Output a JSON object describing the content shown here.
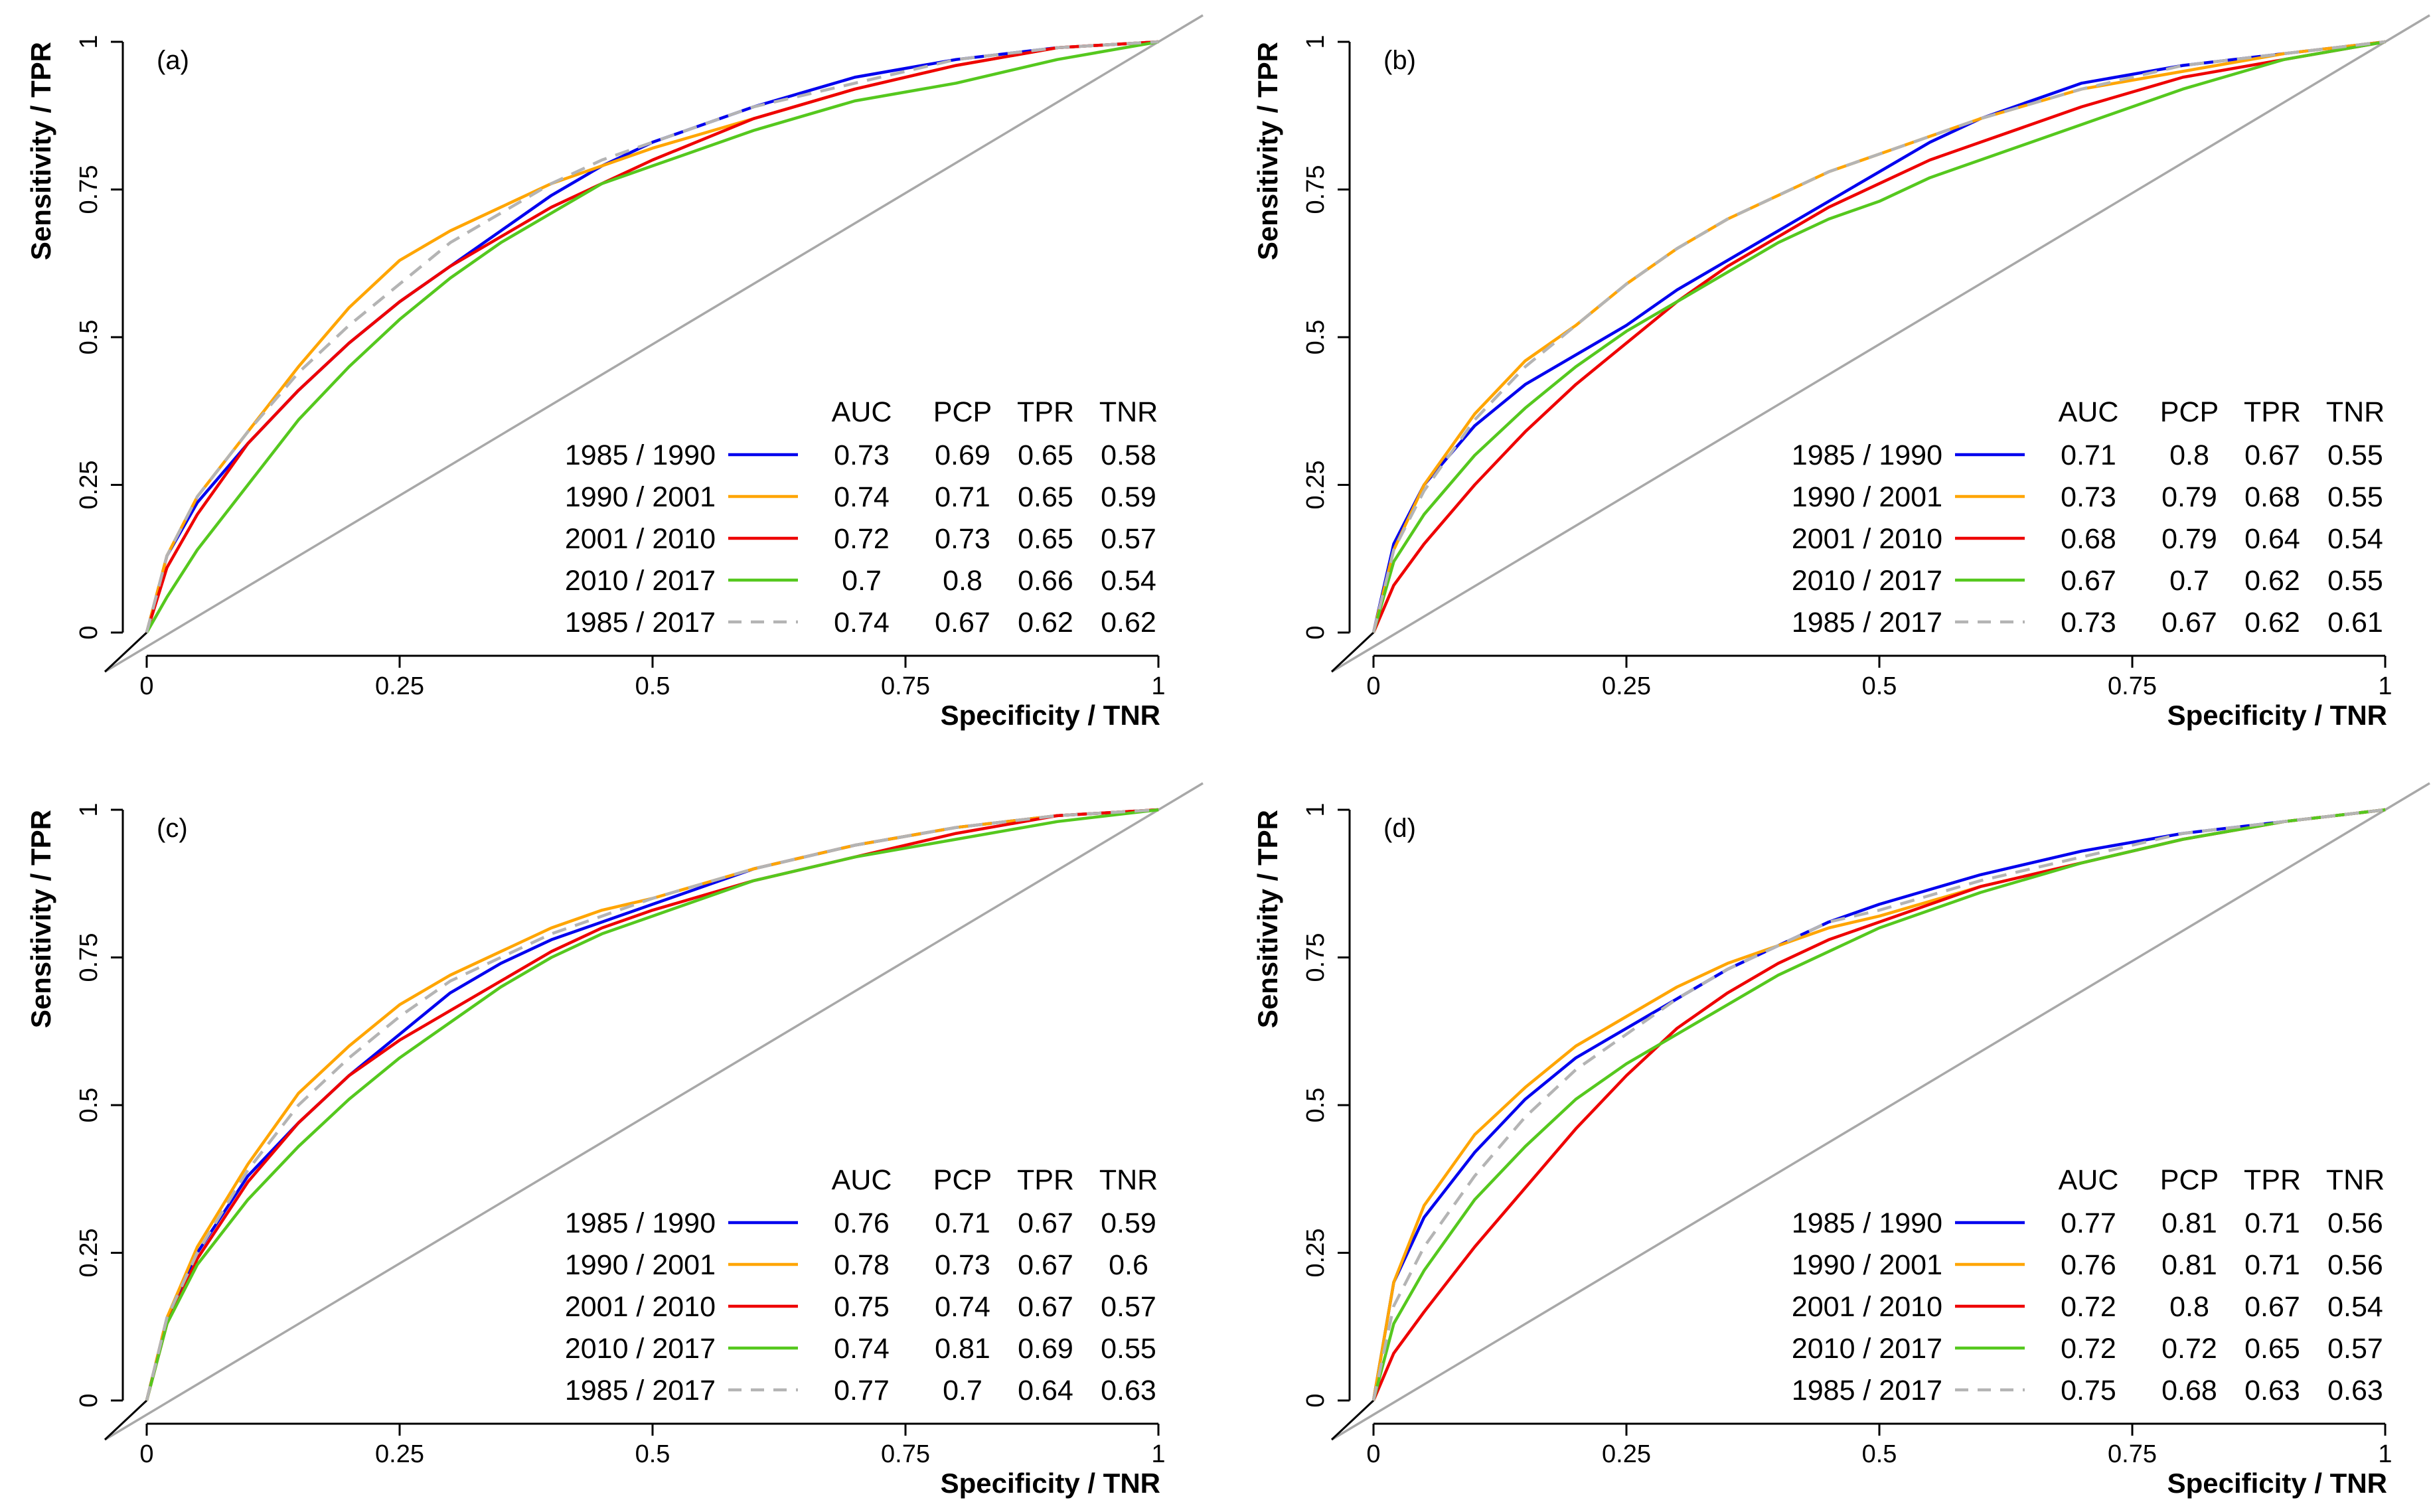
{
  "colors": {
    "1985 / 1990": "#0000ee",
    "1990 / 2001": "#ffa500",
    "2001 / 2010": "#ee0000",
    "2010 / 2017": "#55c81e",
    "1985 / 2017": "#b4b4b4",
    "diagonal": "#a8a8a8",
    "axis": "#000000"
  },
  "chart_data": [
    {
      "type": "line",
      "panel_label": "(a)",
      "xlabel": "Specificity / TNR",
      "ylabel": "Sensitivity / TPR",
      "xlim": [
        0,
        1
      ],
      "ylim": [
        0,
        1
      ],
      "xticks": [
        "0",
        "0.25",
        "0.5",
        "0.75",
        "1"
      ],
      "yticks": [
        "0",
        "0.25",
        "0.5",
        "0.75",
        "1"
      ],
      "legend_placement": "bottom-right",
      "legend_header": [
        "AUC",
        "PCP",
        "TPR",
        "TNR"
      ],
      "series": [
        {
          "name": "1985 / 1990",
          "style": "solid",
          "AUC": "0.73",
          "PCP": "0.69",
          "TPR": "0.65",
          "TNR": "0.58",
          "x": [
            0,
            0.02,
            0.05,
            0.1,
            0.15,
            0.2,
            0.25,
            0.3,
            0.35,
            0.4,
            0.45,
            0.5,
            0.6,
            0.7,
            0.8,
            0.9,
            1
          ],
          "y": [
            0,
            0.13,
            0.22,
            0.32,
            0.41,
            0.49,
            0.56,
            0.62,
            0.68,
            0.74,
            0.79,
            0.83,
            0.89,
            0.94,
            0.97,
            0.99,
            1
          ]
        },
        {
          "name": "1990 / 2001",
          "style": "solid",
          "AUC": "0.74",
          "PCP": "0.71",
          "TPR": "0.65",
          "TNR": "0.59",
          "x": [
            0,
            0.02,
            0.05,
            0.1,
            0.15,
            0.2,
            0.25,
            0.3,
            0.35,
            0.4,
            0.45,
            0.5,
            0.6,
            0.7,
            0.8,
            0.9,
            1
          ],
          "y": [
            0,
            0.13,
            0.23,
            0.34,
            0.45,
            0.55,
            0.63,
            0.68,
            0.72,
            0.76,
            0.79,
            0.82,
            0.87,
            0.92,
            0.96,
            0.99,
            1
          ]
        },
        {
          "name": "2001 / 2010",
          "style": "solid",
          "AUC": "0.72",
          "PCP": "0.73",
          "TPR": "0.65",
          "TNR": "0.57",
          "x": [
            0,
            0.02,
            0.05,
            0.1,
            0.15,
            0.2,
            0.25,
            0.3,
            0.35,
            0.4,
            0.45,
            0.5,
            0.6,
            0.7,
            0.8,
            0.9,
            1
          ],
          "y": [
            0,
            0.11,
            0.2,
            0.32,
            0.41,
            0.49,
            0.56,
            0.62,
            0.67,
            0.72,
            0.76,
            0.8,
            0.87,
            0.92,
            0.96,
            0.99,
            1
          ]
        },
        {
          "name": "2010 / 2017",
          "style": "solid",
          "AUC": "0.7",
          "PCP": "0.8",
          "TPR": "0.66",
          "TNR": "0.54",
          "x": [
            0,
            0.02,
            0.05,
            0.1,
            0.15,
            0.2,
            0.25,
            0.3,
            0.35,
            0.4,
            0.45,
            0.5,
            0.6,
            0.7,
            0.8,
            0.9,
            1
          ],
          "y": [
            0,
            0.06,
            0.14,
            0.25,
            0.36,
            0.45,
            0.53,
            0.6,
            0.66,
            0.71,
            0.76,
            0.79,
            0.85,
            0.9,
            0.93,
            0.97,
            1
          ]
        },
        {
          "name": "1985 / 2017",
          "style": "dashed",
          "AUC": "0.74",
          "PCP": "0.67",
          "TPR": "0.62",
          "TNR": "0.62",
          "x": [
            0,
            0.02,
            0.05,
            0.1,
            0.15,
            0.2,
            0.25,
            0.3,
            0.35,
            0.4,
            0.45,
            0.5,
            0.6,
            0.7,
            0.8,
            0.9,
            1
          ],
          "y": [
            0,
            0.13,
            0.23,
            0.34,
            0.44,
            0.52,
            0.59,
            0.66,
            0.71,
            0.76,
            0.8,
            0.83,
            0.89,
            0.93,
            0.97,
            0.99,
            1
          ]
        }
      ]
    },
    {
      "type": "line",
      "panel_label": "(b)",
      "xlabel": "Specificity / TNR",
      "ylabel": "Sensitivity / TPR",
      "xlim": [
        0,
        1
      ],
      "ylim": [
        0,
        1
      ],
      "xticks": [
        "0",
        "0.25",
        "0.5",
        "0.75",
        "1"
      ],
      "yticks": [
        "0",
        "0.25",
        "0.5",
        "0.75",
        "1"
      ],
      "legend_placement": "bottom-right",
      "legend_header": [
        "AUC",
        "PCP",
        "TPR",
        "TNR"
      ],
      "series": [
        {
          "name": "1985 / 1990",
          "style": "solid",
          "AUC": "0.71",
          "PCP": "0.8",
          "TPR": "0.67",
          "TNR": "0.55",
          "x": [
            0,
            0.02,
            0.05,
            0.1,
            0.15,
            0.2,
            0.25,
            0.3,
            0.35,
            0.4,
            0.45,
            0.5,
            0.55,
            0.6,
            0.7,
            0.8,
            0.9,
            1
          ],
          "y": [
            0,
            0.15,
            0.25,
            0.35,
            0.42,
            0.47,
            0.52,
            0.58,
            0.63,
            0.68,
            0.73,
            0.78,
            0.83,
            0.87,
            0.93,
            0.96,
            0.98,
            1
          ]
        },
        {
          "name": "1990 / 2001",
          "style": "solid",
          "AUC": "0.73",
          "PCP": "0.79",
          "TPR": "0.68",
          "TNR": "0.55",
          "x": [
            0,
            0.02,
            0.05,
            0.1,
            0.15,
            0.2,
            0.25,
            0.3,
            0.35,
            0.4,
            0.45,
            0.5,
            0.55,
            0.6,
            0.7,
            0.8,
            0.9,
            1
          ],
          "y": [
            0,
            0.14,
            0.25,
            0.37,
            0.46,
            0.52,
            0.59,
            0.65,
            0.7,
            0.74,
            0.78,
            0.81,
            0.84,
            0.87,
            0.92,
            0.95,
            0.98,
            1
          ]
        },
        {
          "name": "2001 / 2010",
          "style": "solid",
          "AUC": "0.68",
          "PCP": "0.79",
          "TPR": "0.64",
          "TNR": "0.54",
          "x": [
            0,
            0.02,
            0.05,
            0.1,
            0.15,
            0.2,
            0.25,
            0.3,
            0.35,
            0.4,
            0.45,
            0.5,
            0.55,
            0.6,
            0.7,
            0.8,
            0.9,
            1
          ],
          "y": [
            0,
            0.08,
            0.15,
            0.25,
            0.34,
            0.42,
            0.49,
            0.56,
            0.62,
            0.67,
            0.72,
            0.76,
            0.8,
            0.83,
            0.89,
            0.94,
            0.97,
            1
          ]
        },
        {
          "name": "2010 / 2017",
          "style": "solid",
          "AUC": "0.67",
          "PCP": "0.7",
          "TPR": "0.62",
          "TNR": "0.55",
          "x": [
            0,
            0.02,
            0.05,
            0.1,
            0.15,
            0.2,
            0.25,
            0.3,
            0.35,
            0.4,
            0.45,
            0.5,
            0.55,
            0.6,
            0.7,
            0.8,
            0.9,
            1
          ],
          "y": [
            0,
            0.12,
            0.2,
            0.3,
            0.38,
            0.45,
            0.51,
            0.56,
            0.61,
            0.66,
            0.7,
            0.73,
            0.77,
            0.8,
            0.86,
            0.92,
            0.97,
            1
          ]
        },
        {
          "name": "1985 / 2017",
          "style": "dashed",
          "AUC": "0.73",
          "PCP": "0.67",
          "TPR": "0.62",
          "TNR": "0.61",
          "x": [
            0,
            0.02,
            0.05,
            0.1,
            0.15,
            0.2,
            0.25,
            0.3,
            0.35,
            0.4,
            0.45,
            0.5,
            0.55,
            0.6,
            0.7,
            0.8,
            0.9,
            1
          ],
          "y": [
            0,
            0.14,
            0.24,
            0.36,
            0.45,
            0.52,
            0.59,
            0.65,
            0.7,
            0.74,
            0.78,
            0.81,
            0.84,
            0.87,
            0.92,
            0.96,
            0.98,
            1
          ]
        }
      ]
    },
    {
      "type": "line",
      "panel_label": "(c)",
      "xlabel": "Specificity / TNR",
      "ylabel": "Sensitivity / TPR",
      "xlim": [
        0,
        1
      ],
      "ylim": [
        0,
        1
      ],
      "xticks": [
        "0",
        "0.25",
        "0.5",
        "0.75",
        "1"
      ],
      "yticks": [
        "0",
        "0.25",
        "0.5",
        "0.75",
        "1"
      ],
      "legend_placement": "bottom-right",
      "legend_header": [
        "AUC",
        "PCP",
        "TPR",
        "TNR"
      ],
      "series": [
        {
          "name": "1985 / 1990",
          "style": "solid",
          "AUC": "0.76",
          "PCP": "0.71",
          "TPR": "0.67",
          "TNR": "0.59",
          "x": [
            0,
            0.02,
            0.05,
            0.1,
            0.15,
            0.2,
            0.25,
            0.3,
            0.35,
            0.4,
            0.45,
            0.5,
            0.6,
            0.7,
            0.8,
            0.9,
            1
          ],
          "y": [
            0,
            0.14,
            0.25,
            0.38,
            0.47,
            0.55,
            0.62,
            0.69,
            0.74,
            0.78,
            0.81,
            0.84,
            0.9,
            0.94,
            0.97,
            0.99,
            1
          ]
        },
        {
          "name": "1990 / 2001",
          "style": "solid",
          "AUC": "0.78",
          "PCP": "0.73",
          "TPR": "0.67",
          "TNR": "0.6",
          "x": [
            0,
            0.02,
            0.05,
            0.1,
            0.15,
            0.2,
            0.25,
            0.3,
            0.35,
            0.4,
            0.45,
            0.5,
            0.6,
            0.7,
            0.8,
            0.9,
            1
          ],
          "y": [
            0,
            0.14,
            0.26,
            0.4,
            0.52,
            0.6,
            0.67,
            0.72,
            0.76,
            0.8,
            0.83,
            0.85,
            0.9,
            0.94,
            0.97,
            0.99,
            1
          ]
        },
        {
          "name": "2001 / 2010",
          "style": "solid",
          "AUC": "0.75",
          "PCP": "0.74",
          "TPR": "0.67",
          "TNR": "0.57",
          "x": [
            0,
            0.02,
            0.05,
            0.1,
            0.15,
            0.2,
            0.25,
            0.3,
            0.35,
            0.4,
            0.45,
            0.5,
            0.6,
            0.7,
            0.8,
            0.9,
            1
          ],
          "y": [
            0,
            0.13,
            0.24,
            0.37,
            0.47,
            0.55,
            0.61,
            0.66,
            0.71,
            0.76,
            0.8,
            0.83,
            0.88,
            0.92,
            0.96,
            0.99,
            1
          ]
        },
        {
          "name": "2010 / 2017",
          "style": "solid",
          "AUC": "0.74",
          "PCP": "0.81",
          "TPR": "0.69",
          "TNR": "0.55",
          "x": [
            0,
            0.02,
            0.05,
            0.1,
            0.15,
            0.2,
            0.25,
            0.3,
            0.35,
            0.4,
            0.45,
            0.5,
            0.6,
            0.7,
            0.8,
            0.9,
            1
          ],
          "y": [
            0,
            0.13,
            0.23,
            0.34,
            0.43,
            0.51,
            0.58,
            0.64,
            0.7,
            0.75,
            0.79,
            0.82,
            0.88,
            0.92,
            0.95,
            0.98,
            1
          ]
        },
        {
          "name": "1985 / 2017",
          "style": "dashed",
          "AUC": "0.77",
          "PCP": "0.7",
          "TPR": "0.64",
          "TNR": "0.63",
          "x": [
            0,
            0.02,
            0.05,
            0.1,
            0.15,
            0.2,
            0.25,
            0.3,
            0.35,
            0.4,
            0.45,
            0.5,
            0.6,
            0.7,
            0.8,
            0.9,
            1
          ],
          "y": [
            0,
            0.14,
            0.25,
            0.39,
            0.5,
            0.58,
            0.65,
            0.71,
            0.75,
            0.79,
            0.82,
            0.85,
            0.9,
            0.94,
            0.97,
            0.99,
            1
          ]
        }
      ]
    },
    {
      "type": "line",
      "panel_label": "(d)",
      "xlabel": "Specificity / TNR",
      "ylabel": "Sensitivity / TPR",
      "xlim": [
        0,
        1
      ],
      "ylim": [
        0,
        1
      ],
      "xticks": [
        "0",
        "0.25",
        "0.5",
        "0.75",
        "1"
      ],
      "yticks": [
        "0",
        "0.25",
        "0.5",
        "0.75",
        "1"
      ],
      "legend_placement": "bottom-right",
      "legend_header": [
        "AUC",
        "PCP",
        "TPR",
        "TNR"
      ],
      "series": [
        {
          "name": "1985 / 1990",
          "style": "solid",
          "AUC": "0.77",
          "PCP": "0.81",
          "TPR": "0.71",
          "TNR": "0.56",
          "x": [
            0,
            0.02,
            0.05,
            0.1,
            0.15,
            0.2,
            0.25,
            0.3,
            0.35,
            0.4,
            0.45,
            0.5,
            0.6,
            0.7,
            0.8,
            0.9,
            1
          ],
          "y": [
            0,
            0.2,
            0.31,
            0.42,
            0.51,
            0.58,
            0.63,
            0.68,
            0.73,
            0.77,
            0.81,
            0.84,
            0.89,
            0.93,
            0.96,
            0.98,
            1
          ]
        },
        {
          "name": "1990 / 2001",
          "style": "solid",
          "AUC": "0.76",
          "PCP": "0.81",
          "TPR": "0.71",
          "TNR": "0.56",
          "x": [
            0,
            0.02,
            0.05,
            0.1,
            0.15,
            0.2,
            0.25,
            0.3,
            0.35,
            0.4,
            0.45,
            0.5,
            0.6,
            0.7,
            0.8,
            0.9,
            1
          ],
          "y": [
            0,
            0.2,
            0.33,
            0.45,
            0.53,
            0.6,
            0.65,
            0.7,
            0.74,
            0.77,
            0.8,
            0.82,
            0.87,
            0.91,
            0.95,
            0.98,
            1
          ]
        },
        {
          "name": "2001 / 2010",
          "style": "solid",
          "AUC": "0.72",
          "PCP": "0.8",
          "TPR": "0.67",
          "TNR": "0.54",
          "x": [
            0,
            0.02,
            0.05,
            0.1,
            0.15,
            0.2,
            0.25,
            0.3,
            0.35,
            0.4,
            0.45,
            0.5,
            0.6,
            0.7,
            0.8,
            0.9,
            1
          ],
          "y": [
            0,
            0.08,
            0.15,
            0.26,
            0.36,
            0.46,
            0.55,
            0.63,
            0.69,
            0.74,
            0.78,
            0.81,
            0.87,
            0.91,
            0.95,
            0.98,
            1
          ]
        },
        {
          "name": "2010 / 2017",
          "style": "solid",
          "AUC": "0.72",
          "PCP": "0.72",
          "TPR": "0.65",
          "TNR": "0.57",
          "x": [
            0,
            0.02,
            0.05,
            0.1,
            0.15,
            0.2,
            0.25,
            0.3,
            0.35,
            0.4,
            0.45,
            0.5,
            0.6,
            0.7,
            0.8,
            0.9,
            1
          ],
          "y": [
            0,
            0.13,
            0.22,
            0.34,
            0.43,
            0.51,
            0.57,
            0.62,
            0.67,
            0.72,
            0.76,
            0.8,
            0.86,
            0.91,
            0.95,
            0.98,
            1
          ]
        },
        {
          "name": "1985 / 2017",
          "style": "dashed",
          "AUC": "0.75",
          "PCP": "0.68",
          "TPR": "0.63",
          "TNR": "0.63",
          "x": [
            0,
            0.02,
            0.05,
            0.1,
            0.15,
            0.2,
            0.25,
            0.3,
            0.35,
            0.4,
            0.45,
            0.5,
            0.6,
            0.7,
            0.8,
            0.9,
            1
          ],
          "y": [
            0,
            0.16,
            0.26,
            0.38,
            0.48,
            0.56,
            0.62,
            0.68,
            0.73,
            0.77,
            0.81,
            0.83,
            0.88,
            0.92,
            0.96,
            0.98,
            1
          ]
        }
      ]
    }
  ]
}
